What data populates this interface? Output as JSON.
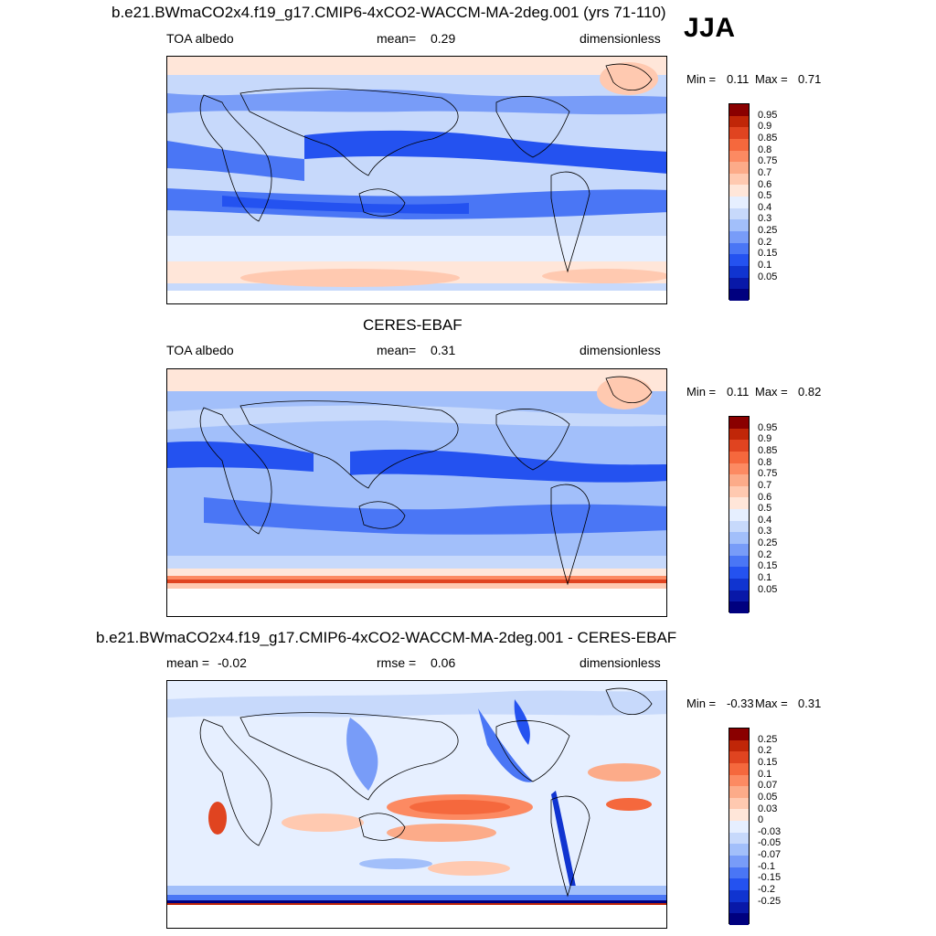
{
  "season_label": "JJA",
  "palettes": {
    "abs": [
      "#00007f",
      "#0818a8",
      "#1034d0",
      "#2452f0",
      "#4a76f5",
      "#789cf8",
      "#a2bffa",
      "#c7d9fb",
      "#e6efff",
      "#ffe6d9",
      "#ffc9b0",
      "#fcab89",
      "#fc8a62",
      "#f5683d",
      "#e04420",
      "#c02608",
      "#8a0000"
    ],
    "diff": [
      "#00007f",
      "#0818a8",
      "#1034d0",
      "#2452f0",
      "#4a76f5",
      "#789cf8",
      "#a2bffa",
      "#c7d9fb",
      "#e6efff",
      "#ffe6d9",
      "#ffc9b0",
      "#fcab89",
      "#fc8a62",
      "#f5683d",
      "#e04420",
      "#c02608",
      "#8a0000"
    ]
  },
  "panels": [
    {
      "id": "model",
      "title": "b.e21.BWmaCO2x4.f19_g17.CMIP6-4xCO2-WACCM-MA-2deg.001 (yrs 71-110)",
      "left_label": "TOA albedo",
      "center_label": "mean=",
      "center_value": "0.29",
      "right_label": "dimensionless",
      "min_label": "Min =",
      "min_value": "0.11",
      "max_label": "Max =",
      "max_value": "0.71",
      "levels": [
        "0.95",
        "0.9",
        "0.85",
        "0.8",
        "0.75",
        "0.7",
        "0.6",
        "0.5",
        "0.4",
        "0.3",
        "0.25",
        "0.2",
        "0.15",
        "0.1",
        "0.05"
      ],
      "palette": "abs"
    },
    {
      "id": "obs",
      "title": "CERES-EBAF",
      "left_label": "TOA albedo",
      "center_label": "mean=",
      "center_value": "0.31",
      "right_label": "dimensionless",
      "min_label": "Min =",
      "min_value": "0.11",
      "max_label": "Max =",
      "max_value": "0.82",
      "levels": [
        "0.95",
        "0.9",
        "0.85",
        "0.8",
        "0.75",
        "0.7",
        "0.6",
        "0.5",
        "0.4",
        "0.3",
        "0.25",
        "0.2",
        "0.15",
        "0.1",
        "0.05"
      ],
      "palette": "abs"
    },
    {
      "id": "diff",
      "title": "b.e21.BWmaCO2x4.f19_g17.CMIP6-4xCO2-WACCM-MA-2deg.001 - CERES-EBAF",
      "left_label": "mean =",
      "left_value": "-0.02",
      "center_label": "rmse =",
      "center_value": "0.06",
      "right_label": "dimensionless",
      "min_label": "Min =",
      "min_value": "-0.33",
      "max_label": "Max =",
      "max_value": "0.31",
      "levels": [
        "0.25",
        "0.2",
        "0.15",
        "0.1",
        "0.07",
        "0.05",
        "0.03",
        "0",
        "-0.03",
        "-0.05",
        "-0.07",
        "-0.1",
        "-0.15",
        "-0.2",
        "-0.25"
      ],
      "palette": "diff"
    }
  ]
}
